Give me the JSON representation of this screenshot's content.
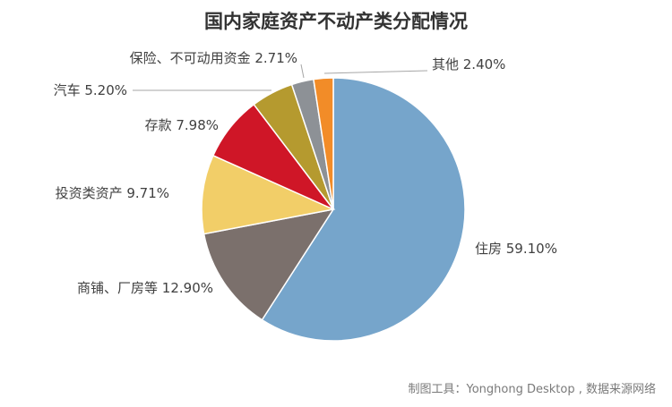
{
  "chart_data": {
    "type": "pie",
    "title": "国内家庭资产不动产类分配情况",
    "slices": [
      {
        "label": "住房 59.10%",
        "value": 59.1,
        "color": "#76a5cb"
      },
      {
        "label": "商铺、厂房等 12.90%",
        "value": 12.9,
        "color": "#7b706c"
      },
      {
        "label": "投资类资产 9.71%",
        "value": 9.71,
        "color": "#f2ce68"
      },
      {
        "label": "存款 7.98%",
        "value": 7.98,
        "color": "#cf1627"
      },
      {
        "label": "汽车 5.20%",
        "value": 5.2,
        "color": "#b59a2f"
      },
      {
        "label": "保险、不可动用资金 2.71%",
        "value": 2.71,
        "color": "#8d9196"
      },
      {
        "label": "其他 2.40%",
        "value": 2.4,
        "color": "#f28c28"
      }
    ],
    "legend": "none"
  },
  "footer": {
    "credit": "制图工具：Yonghong Desktop , 数据来源网络"
  }
}
